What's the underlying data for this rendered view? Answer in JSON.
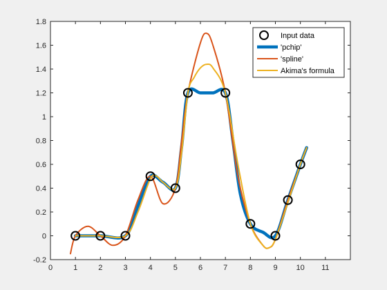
{
  "chart_data": {
    "type": "line",
    "title": "",
    "xlabel": "",
    "ylabel": "",
    "xlim": [
      0,
      12
    ],
    "ylim": [
      -0.2,
      1.8
    ],
    "xticks": [
      0,
      1,
      2,
      3,
      4,
      5,
      6,
      7,
      8,
      9,
      10,
      11
    ],
    "yticks": [
      -0.2,
      0,
      0.2,
      0.4,
      0.6,
      0.8,
      1,
      1.2,
      1.4,
      1.6,
      1.8
    ],
    "grid": false,
    "legend_position": "top-right",
    "input_data": {
      "name": "Input data",
      "x": [
        1,
        2,
        3,
        4,
        5,
        5.5,
        7,
        8,
        9,
        9.5,
        10
      ],
      "y": [
        0,
        0,
        0,
        0.5,
        0.4,
        1.2,
        1.2,
        0.1,
        0,
        0.3,
        0.6
      ]
    },
    "series": [
      {
        "name": "'pchip'",
        "color": "#0072bd",
        "x": [
          1,
          2,
          3,
          3.5,
          4,
          4.5,
          5,
          5.25,
          5.5,
          6,
          6.5,
          7,
          7.3,
          7.6,
          8,
          8.5,
          9,
          9.5,
          10,
          10.25
        ],
        "y": [
          0,
          0,
          0,
          0.25,
          0.5,
          0.45,
          0.4,
          0.75,
          1.2,
          1.2,
          1.2,
          1.2,
          0.8,
          0.35,
          0.1,
          0.03,
          0,
          0.3,
          0.6,
          0.74
        ]
      },
      {
        "name": "'spline'",
        "color": "#d95319",
        "x": [
          0.8,
          1,
          1.5,
          2,
          2.5,
          3,
          3.5,
          4,
          4.5,
          5,
          5.25,
          5.5,
          6,
          6.25,
          6.5,
          7,
          7.5,
          8,
          8.5,
          8.75,
          9,
          9.5,
          10,
          10.25
        ],
        "y": [
          -0.15,
          0,
          0.08,
          0,
          -0.08,
          0,
          0.3,
          0.5,
          0.27,
          0.4,
          0.8,
          1.2,
          1.62,
          1.7,
          1.6,
          1.2,
          0.5,
          0.1,
          -0.08,
          -0.1,
          -0.03,
          0.3,
          0.6,
          0.74
        ]
      },
      {
        "name": "Akima's formula",
        "color": "#edb120",
        "x": [
          1,
          2,
          3,
          3.5,
          4,
          4.25,
          4.5,
          5,
          5.25,
          5.5,
          5.75,
          6,
          6.25,
          6.5,
          7,
          7.5,
          8,
          8.5,
          8.75,
          9,
          9.5,
          10,
          10.25
        ],
        "y": [
          0,
          0,
          0,
          0.2,
          0.48,
          0.5,
          0.45,
          0.4,
          0.7,
          1.2,
          1.33,
          1.41,
          1.44,
          1.41,
          1.2,
          0.6,
          0.1,
          -0.08,
          -0.1,
          -0.03,
          0.28,
          0.6,
          0.74
        ]
      }
    ]
  }
}
